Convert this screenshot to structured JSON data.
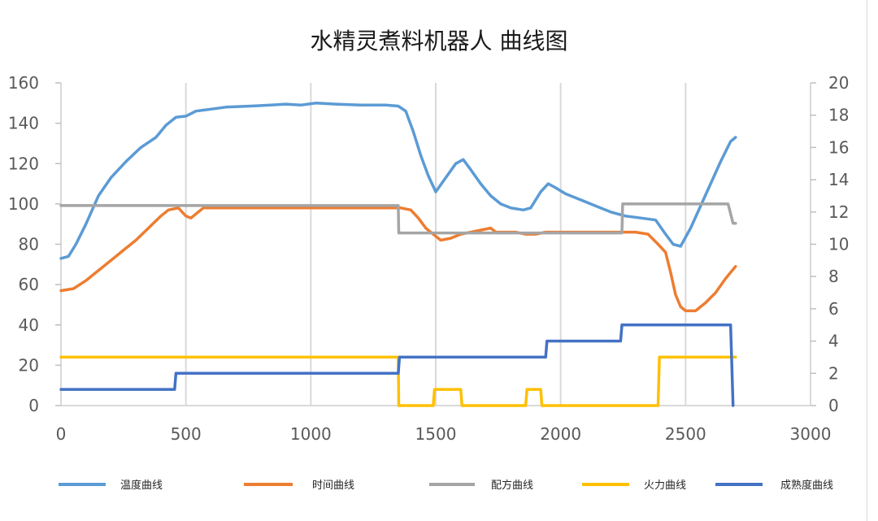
{
  "chart_data": {
    "type": "line",
    "title": "水精灵煮料机器人 曲线图",
    "xlim": [
      0,
      3000
    ],
    "x_ticks": [
      0,
      500,
      1000,
      1500,
      2000,
      2500,
      3000
    ],
    "ylim_left": [
      0,
      160
    ],
    "y_ticks_left": [
      0,
      20,
      40,
      60,
      80,
      100,
      120,
      140,
      160
    ],
    "ylim_right": [
      0,
      20
    ],
    "y_ticks_right": [
      0,
      2,
      4,
      6,
      8,
      10,
      12,
      14,
      16,
      18,
      20
    ],
    "grid": "vertical",
    "legend_position": "bottom",
    "series": [
      {
        "name": "温度曲线",
        "color": "#5B9BD5",
        "axis": "left",
        "points": [
          [
            0,
            73
          ],
          [
            30,
            74
          ],
          [
            60,
            80
          ],
          [
            100,
            90
          ],
          [
            150,
            104
          ],
          [
            200,
            113
          ],
          [
            260,
            121
          ],
          [
            320,
            128
          ],
          [
            380,
            133
          ],
          [
            420,
            139
          ],
          [
            460,
            143
          ],
          [
            500,
            143.5
          ],
          [
            540,
            146
          ],
          [
            600,
            147
          ],
          [
            660,
            148
          ],
          [
            760,
            148.5
          ],
          [
            840,
            149
          ],
          [
            900,
            149.5
          ],
          [
            960,
            149
          ],
          [
            1020,
            150
          ],
          [
            1100,
            149.5
          ],
          [
            1200,
            149
          ],
          [
            1300,
            149
          ],
          [
            1350,
            148.5
          ],
          [
            1380,
            146
          ],
          [
            1410,
            136
          ],
          [
            1440,
            124
          ],
          [
            1470,
            114
          ],
          [
            1500,
            106
          ],
          [
            1540,
            113
          ],
          [
            1580,
            120
          ],
          [
            1610,
            122
          ],
          [
            1640,
            117
          ],
          [
            1680,
            110
          ],
          [
            1720,
            104
          ],
          [
            1760,
            100
          ],
          [
            1800,
            98
          ],
          [
            1850,
            97
          ],
          [
            1880,
            98
          ],
          [
            1920,
            106
          ],
          [
            1950,
            110
          ],
          [
            1980,
            108
          ],
          [
            2020,
            105
          ],
          [
            2080,
            102
          ],
          [
            2140,
            99
          ],
          [
            2200,
            96
          ],
          [
            2260,
            94
          ],
          [
            2320,
            93
          ],
          [
            2380,
            92
          ],
          [
            2420,
            85
          ],
          [
            2450,
            80
          ],
          [
            2480,
            79
          ],
          [
            2520,
            88
          ],
          [
            2560,
            99
          ],
          [
            2600,
            110
          ],
          [
            2640,
            121
          ],
          [
            2680,
            131
          ],
          [
            2700,
            133
          ]
        ]
      },
      {
        "name": "时间曲线",
        "color": "#ED7D31",
        "axis": "left",
        "points": [
          [
            0,
            57
          ],
          [
            50,
            58
          ],
          [
            100,
            62
          ],
          [
            150,
            67
          ],
          [
            200,
            72
          ],
          [
            250,
            77
          ],
          [
            300,
            82
          ],
          [
            350,
            88
          ],
          [
            400,
            94
          ],
          [
            430,
            97
          ],
          [
            470,
            98
          ],
          [
            500,
            94
          ],
          [
            520,
            93
          ],
          [
            550,
            96
          ],
          [
            570,
            98
          ],
          [
            700,
            98
          ],
          [
            900,
            98
          ],
          [
            1100,
            98
          ],
          [
            1300,
            98
          ],
          [
            1360,
            98
          ],
          [
            1400,
            97
          ],
          [
            1430,
            93
          ],
          [
            1460,
            88
          ],
          [
            1490,
            85
          ],
          [
            1520,
            82
          ],
          [
            1560,
            83
          ],
          [
            1600,
            85
          ],
          [
            1640,
            86
          ],
          [
            1680,
            87
          ],
          [
            1720,
            88
          ],
          [
            1740,
            86
          ],
          [
            1780,
            86
          ],
          [
            1820,
            86
          ],
          [
            1860,
            85
          ],
          [
            1900,
            85
          ],
          [
            1940,
            86
          ],
          [
            2000,
            86
          ],
          [
            2100,
            86
          ],
          [
            2200,
            86
          ],
          [
            2250,
            86
          ],
          [
            2300,
            86
          ],
          [
            2350,
            85
          ],
          [
            2390,
            80
          ],
          [
            2420,
            76
          ],
          [
            2440,
            66
          ],
          [
            2460,
            55
          ],
          [
            2480,
            49
          ],
          [
            2500,
            47
          ],
          [
            2540,
            47
          ],
          [
            2580,
            51
          ],
          [
            2620,
            56
          ],
          [
            2660,
            63
          ],
          [
            2700,
            69
          ]
        ]
      },
      {
        "name": "配方曲线",
        "color": "#A5A5A5",
        "axis": "right",
        "points": [
          [
            0,
            12.4
          ],
          [
            1350,
            12.4
          ],
          [
            1352,
            10.7
          ],
          [
            2245,
            10.7
          ],
          [
            2248,
            12.5
          ],
          [
            2670,
            12.5
          ],
          [
            2690,
            11.3
          ],
          [
            2700,
            11.3
          ]
        ]
      },
      {
        "name": "火力曲线",
        "color": "#FFC000",
        "axis": "left",
        "points": [
          [
            0,
            24
          ],
          [
            1350,
            24
          ],
          [
            1352,
            0
          ],
          [
            1490,
            0
          ],
          [
            1495,
            8
          ],
          [
            1600,
            8
          ],
          [
            1605,
            0
          ],
          [
            1860,
            0
          ],
          [
            1865,
            8
          ],
          [
            1920,
            8
          ],
          [
            1925,
            0
          ],
          [
            2390,
            0
          ],
          [
            2395,
            24
          ],
          [
            2700,
            24
          ]
        ]
      },
      {
        "name": "成熟度曲线",
        "color": "#4472C4",
        "axis": "right",
        "points": [
          [
            0,
            1
          ],
          [
            455,
            1
          ],
          [
            460,
            2
          ],
          [
            1350,
            2
          ],
          [
            1355,
            3
          ],
          [
            1940,
            3
          ],
          [
            1945,
            4
          ],
          [
            2240,
            4
          ],
          [
            2245,
            5
          ],
          [
            2680,
            5
          ],
          [
            2690,
            0
          ]
        ]
      }
    ]
  }
}
